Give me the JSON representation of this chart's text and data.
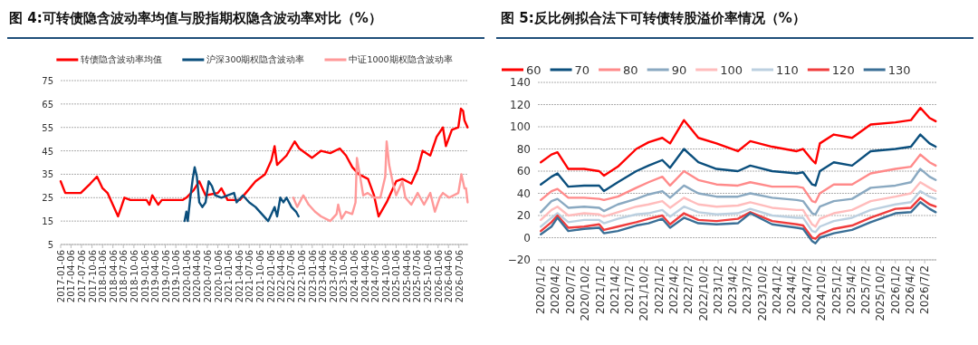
{
  "chart_data": [
    {
      "type": "line",
      "title": "图 4:可转债隐含波动率均值与股指期权隐含波动率对比（%）",
      "legend": "top",
      "grid": "y",
      "xlim": [
        "2017-01-06",
        "2026-09-25"
      ],
      "ylim": [
        5,
        75
      ],
      "yticks": [
        5,
        15,
        25,
        35,
        45,
        55,
        65,
        75
      ],
      "xticks": [
        "2017-01-06",
        "2017-04-06",
        "2017-07-06",
        "2017-10-06",
        "2018-01-06",
        "2018-04-06",
        "2018-07-06",
        "2018-10-06",
        "2019-01-06",
        "2019-04-06",
        "2019-07-06",
        "2019-10-06",
        "2020-01-06",
        "2020-04-06",
        "2020-07-06",
        "2020-10-06",
        "2021-01-06",
        "2021-04-06",
        "2021-07-06",
        "2021-10-06",
        "2022-01-06",
        "2022-04-06",
        "2022-07-06",
        "2022-10-06",
        "2023-01-06",
        "2023-04-06",
        "2023-07-06",
        "2023-10-06",
        "2024-01-06",
        "2024-04-06",
        "2024-07-06",
        "2024-10-06",
        "2025-01-06",
        "2025-04-06",
        "2025-07-06",
        "2025-10-06",
        "2026-01-06",
        "2026-04-06",
        "2026-07-06"
      ],
      "series": [
        {
          "name": "转债隐含波动率均值",
          "color": "#ff0000",
          "x": [
            "2017-01-06",
            "2017-02-15",
            "2017-06-30",
            "2017-09-21",
            "2017-11-18",
            "2018-01-06",
            "2018-02-18",
            "2018-05-21",
            "2018-06-18",
            "2018-07-15",
            "2018-09-06",
            "2019-01-24",
            "2019-02-18",
            "2019-03-15",
            "2019-05-06",
            "2019-06-06",
            "2019-12-06",
            "2020-01-06",
            "2020-03-06",
            "2020-04-27",
            "2020-06-21",
            "2020-10-06",
            "2020-11-06",
            "2020-12-30",
            "2021-04-15",
            "2021-06-06",
            "2021-08-30",
            "2021-11-21",
            "2022-01-15",
            "2022-02-12",
            "2022-03-06",
            "2022-05-27",
            "2022-08-06",
            "2022-09-15",
            "2023-01-03",
            "2023-03-24",
            "2023-06-12",
            "2023-09-03",
            "2023-10-27",
            "2023-12-21",
            "2024-02-15",
            "2024-05-06",
            "2024-06-27",
            "2024-08-06",
            "2024-10-15",
            "2025-01-06",
            "2025-03-01",
            "2025-05-18",
            "2025-07-12",
            "2025-08-24",
            "2025-10-30",
            "2025-12-24",
            "2026-02-17",
            "2026-03-15",
            "2026-05-06",
            "2026-07-01",
            "2026-07-24",
            "2026-08-12",
            "2026-08-24",
            "2026-09-20"
          ],
          "values": [
            32,
            27,
            27,
            31,
            34,
            29,
            27,
            17,
            21,
            25,
            24,
            24,
            22,
            26,
            22,
            24,
            24,
            25,
            28,
            32,
            26,
            27,
            29,
            24,
            24,
            27,
            32,
            35,
            41,
            47,
            39,
            43,
            49,
            46,
            42,
            45,
            44,
            46,
            43,
            38,
            35,
            33,
            26,
            17,
            23,
            32,
            33,
            31,
            37,
            45,
            43,
            51,
            55,
            47,
            54,
            55,
            63,
            62,
            58,
            55
          ]
        },
        {
          "name": "沪深300期权隐含波动率",
          "color": "#0b4f7d",
          "x": [
            "2019-12-21",
            "2020-01-06",
            "2020-01-18",
            "2020-02-09",
            "2020-03-01",
            "2020-03-18",
            "2020-04-06",
            "2020-04-27",
            "2020-05-24",
            "2020-06-21",
            "2020-07-18",
            "2020-08-15",
            "2020-09-12",
            "2020-11-06",
            "2021-02-24",
            "2021-03-18",
            "2021-05-12",
            "2021-07-06",
            "2021-08-30",
            "2021-10-24",
            "2021-12-18",
            "2022-01-15",
            "2022-02-12",
            "2022-03-06",
            "2022-04-03",
            "2022-04-30",
            "2022-05-27",
            "2022-07-09",
            "2022-08-18",
            "2022-09-09"
          ],
          "values": [
            15,
            19,
            15,
            25,
            33,
            38,
            34,
            23,
            21,
            23,
            32,
            30,
            26,
            25,
            27,
            23,
            26,
            23,
            21,
            18,
            15,
            18,
            21,
            17,
            25,
            23,
            25,
            21,
            19,
            17
          ]
        },
        {
          "name": "中证1000期权隐含波动率",
          "color": "#ff9999",
          "x": [
            "2022-07-25",
            "2022-08-28",
            "2022-10-20",
            "2022-12-06",
            "2023-01-30",
            "2023-03-24",
            "2023-06-12",
            "2023-08-06",
            "2023-08-20",
            "2023-09-18",
            "2023-10-26",
            "2023-12-20",
            "2024-01-18",
            "2024-01-30",
            "2024-02-27",
            "2024-03-25",
            "2024-05-03",
            "2024-06-27",
            "2024-08-21",
            "2024-10-03",
            "2024-10-15",
            "2024-11-06",
            "2024-12-09",
            "2025-01-06",
            "2025-03-01",
            "2025-03-27",
            "2025-05-18",
            "2025-07-12",
            "2025-09-06",
            "2025-10-30",
            "2025-12-09",
            "2026-01-20",
            "2026-02-17",
            "2026-04-12",
            "2026-07-01",
            "2026-07-28",
            "2026-08-24",
            "2026-09-06",
            "2026-09-20"
          ],
          "values": [
            25,
            21,
            26,
            22,
            19,
            17,
            15,
            18,
            22,
            16,
            19,
            18,
            23,
            42,
            34,
            26,
            27,
            25,
            25,
            34,
            49,
            39,
            31,
            26,
            32,
            25,
            22,
            27,
            22,
            27,
            19,
            25,
            27,
            25,
            27,
            35,
            29,
            29,
            23
          ]
        }
      ]
    },
    {
      "type": "line",
      "title": "图 5:反比例拟合法下可转债转股溢价率情况（%）",
      "legend": "top left",
      "grid": "y",
      "xlim": [
        "2019-12-15",
        "2026-09-12"
      ],
      "ylim": [
        -20,
        140
      ],
      "yticks": [
        -20,
        0,
        20,
        40,
        60,
        80,
        100,
        120,
        140
      ],
      "xticks": [
        {
          "value": "2020-01-02",
          "label": "2020/1/2"
        },
        {
          "value": "2020-04-02",
          "label": "2020/4/2"
        },
        {
          "value": "2020-07-02",
          "label": "2020/7/2"
        },
        {
          "value": "2020-10-02",
          "label": "2020/10/2"
        },
        {
          "value": "2021-01-02",
          "label": "2021/1/2"
        },
        {
          "value": "2021-04-02",
          "label": "2021/4/2"
        },
        {
          "value": "2021-07-02",
          "label": "2021/7/2"
        },
        {
          "value": "2021-10-02",
          "label": "2021/10/2"
        },
        {
          "value": "2022-01-02",
          "label": "2022/1/2"
        },
        {
          "value": "2022-04-02",
          "label": "2022/4/2"
        },
        {
          "value": "2022-07-02",
          "label": "2022/7/2"
        },
        {
          "value": "2022-10-02",
          "label": "2022/10/2"
        },
        {
          "value": "2023-01-02",
          "label": "2023/1/2"
        },
        {
          "value": "2023-04-02",
          "label": "2023/4/2"
        },
        {
          "value": "2023-07-02",
          "label": "2023/7/2"
        },
        {
          "value": "2023-10-02",
          "label": "2023/10/2"
        },
        {
          "value": "2024-01-02",
          "label": "2024/1/2"
        },
        {
          "value": "2024-04-02",
          "label": "2024/4/2"
        },
        {
          "value": "2024-07-02",
          "label": "2024/7/2"
        },
        {
          "value": "2024-10-02",
          "label": "2024/10/2"
        },
        {
          "value": "2025-01-02",
          "label": "2025/1/2"
        },
        {
          "value": "2025-04-02",
          "label": "2025/4/2"
        },
        {
          "value": "2025-07-02",
          "label": "2025/7/2"
        },
        {
          "value": "2025-10-02",
          "label": "2025/10/2"
        },
        {
          "value": "2026-01-02",
          "label": "2026/1/2"
        },
        {
          "value": "2026-04-02",
          "label": "2026/4/2"
        },
        {
          "value": "2026-07-02",
          "label": "2026/7/2"
        }
      ],
      "x": [
        "2020-01-02",
        "2020-03-08",
        "2020-04-14",
        "2020-06-20",
        "2020-09-26",
        "2020-12-28",
        "2021-01-26",
        "2021-04-22",
        "2021-08-14",
        "2021-10-29",
        "2022-01-22",
        "2022-03-11",
        "2022-06-05",
        "2022-09-02",
        "2022-12-23",
        "2023-05-04",
        "2023-07-20",
        "2023-12-02",
        "2024-05-02",
        "2024-06-10",
        "2024-08-05",
        "2024-08-26",
        "2024-09-22",
        "2024-12-17",
        "2025-04-09",
        "2025-08-02",
        "2026-01-02",
        "2026-04-08",
        "2026-06-05",
        "2026-08-01",
        "2026-09-08"
      ],
      "series": [
        {
          "name": "60",
          "color": "#ff0000",
          "values": [
            68,
            75,
            77,
            62,
            62,
            60,
            56,
            64,
            80,
            86,
            90,
            85,
            106,
            90,
            85,
            78,
            87,
            82,
            78,
            80,
            70,
            67,
            85,
            93,
            90,
            102,
            104,
            106,
            117,
            108,
            105
          ]
        },
        {
          "name": "70",
          "color": "#0b4f7d",
          "values": [
            48,
            55,
            58,
            46,
            47,
            47,
            42,
            50,
            60,
            65,
            70,
            63,
            80,
            68,
            62,
            60,
            65,
            60,
            58,
            59,
            48,
            47,
            60,
            68,
            65,
            78,
            80,
            82,
            93,
            85,
            82
          ]
        },
        {
          "name": "80",
          "color": "#ff8a8a",
          "values": [
            34,
            42,
            44,
            36,
            36,
            35,
            34,
            37,
            45,
            50,
            55,
            47,
            60,
            52,
            48,
            47,
            50,
            46,
            46,
            45,
            33,
            32,
            40,
            48,
            48,
            58,
            62,
            64,
            75,
            68,
            65
          ]
        },
        {
          "name": "90",
          "color": "#8aa9c1",
          "values": [
            23,
            33,
            35,
            27,
            28,
            27,
            24,
            30,
            35,
            39,
            42,
            36,
            47,
            40,
            37,
            37,
            40,
            36,
            34,
            33,
            22,
            21,
            28,
            33,
            35,
            45,
            47,
            50,
            62,
            55,
            52
          ]
        },
        {
          "name": "100",
          "color": "#ffbcbc",
          "values": [
            16,
            25,
            28,
            20,
            22,
            21,
            19,
            23,
            28,
            30,
            33,
            27,
            36,
            30,
            28,
            29,
            32,
            27,
            25,
            25,
            12,
            10,
            17,
            22,
            25,
            33,
            37,
            40,
            50,
            45,
            42
          ]
        },
        {
          "name": "110",
          "color": "#bcd0e0",
          "values": [
            10,
            18,
            22,
            14,
            16,
            16,
            13,
            17,
            21,
            22,
            25,
            19,
            28,
            23,
            21,
            22,
            26,
            20,
            18,
            18,
            6,
            5,
            10,
            15,
            18,
            25,
            30,
            32,
            42,
            37,
            35
          ]
        },
        {
          "name": "120",
          "color": "#f03c3c",
          "values": [
            6,
            14,
            20,
            9,
            10,
            12,
            7,
            10,
            14,
            17,
            20,
            12,
            22,
            16,
            15,
            17,
            23,
            15,
            12,
            11,
            0,
            -1,
            3,
            8,
            11,
            18,
            26,
            27,
            36,
            30,
            28
          ]
        },
        {
          "name": "130",
          "color": "#3a6f96",
          "values": [
            3,
            10,
            18,
            6,
            8,
            9,
            4,
            6,
            11,
            13,
            17,
            9,
            18,
            13,
            12,
            13,
            22,
            12,
            9,
            8,
            -3,
            -5,
            0,
            4,
            7,
            14,
            22,
            23,
            32,
            26,
            23
          ]
        }
      ]
    }
  ]
}
